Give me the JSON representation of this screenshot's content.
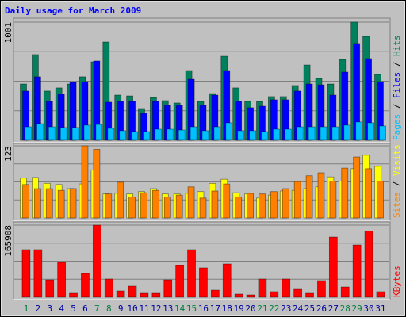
{
  "chart_data": {
    "type": "bar",
    "title": "Daily usage for March 2009",
    "categories": [
      "1",
      "2",
      "3",
      "4",
      "5",
      "6",
      "7",
      "8",
      "9",
      "10",
      "11",
      "12",
      "13",
      "14",
      "15",
      "16",
      "17",
      "18",
      "19",
      "20",
      "21",
      "22",
      "23",
      "24",
      "25",
      "26",
      "27",
      "28",
      "29",
      "30",
      "31"
    ],
    "category_colors": [
      "#008040",
      "#0000a0",
      "#0000a0",
      "#0000a0",
      "#0000a0",
      "#0000a0",
      "#008040",
      "#008040",
      "#0000a0",
      "#0000a0",
      "#0000a0",
      "#0000a0",
      "#0000a0",
      "#008040",
      "#008040",
      "#0000a0",
      "#0000a0",
      "#0000a0",
      "#0000a0",
      "#0000a0",
      "#008040",
      "#008040",
      "#0000a0",
      "#0000a0",
      "#0000a0",
      "#0000a0",
      "#0000a0",
      "#008040",
      "#008040",
      "#0000a0",
      "#0000a0"
    ],
    "legend_separator": " / ",
    "panels": [
      {
        "ylim": [
          0,
          1001
        ],
        "yticks": [
          1001
        ],
        "series": [
          {
            "name": "Hits",
            "color": "#00805c",
            "values": [
              477,
              726,
              417,
              444,
              477,
              538,
              665,
              833,
              383,
              376,
              269,
              363,
              336,
              316,
              591,
              329,
              396,
              712,
              444,
              329,
              329,
              370,
              370,
              464,
              638,
              524,
              477,
              685,
              1001,
              880,
              558
            ]
          },
          {
            "name": "Files",
            "color": "#0000ff",
            "values": [
              417,
              538,
              329,
              390,
              491,
              497,
              672,
              323,
              329,
              329,
              228,
              329,
              296,
              296,
              517,
              296,
              383,
              591,
              329,
              276,
              289,
              343,
              343,
              417,
              477,
              470,
              383,
              578,
              820,
              692,
              497
            ]
          },
          {
            "name": "Pages",
            "color": "#00c0ff",
            "values": [
              114,
              141,
              114,
              108,
              108,
              128,
              134,
              101,
              81,
              74,
              74,
              94,
              94,
              87,
              114,
              81,
              114,
              148,
              81,
              81,
              74,
              94,
              94,
              114,
              114,
              114,
              114,
              128,
              155,
              148,
              121
            ]
          }
        ]
      },
      {
        "ylim": [
          0,
          123
        ],
        "yticks": [
          123
        ],
        "series": [
          {
            "name": "Visits",
            "color": "#ffff00",
            "values": [
              68,
              69,
              59,
              57,
              50,
              58,
              82,
              41,
              42,
              41,
              45,
              50,
              41,
              41,
              42,
              45,
              59,
              66,
              43,
              41,
              34,
              39,
              46,
              47,
              50,
              53,
              70,
              63,
              84,
              107,
              88
            ]
          },
          {
            "name": "Sites",
            "color": "#ff8000",
            "values": [
              57,
              50,
              50,
              47,
              50,
              123,
              117,
              41,
              61,
              36,
              43,
              47,
              36,
              39,
              53,
              34,
              46,
              58,
              36,
              42,
              41,
              45,
              50,
              62,
              72,
              77,
              63,
              85,
              104,
              84,
              63
            ]
          }
        ]
      },
      {
        "ylim": [
          0,
          165908
        ],
        "yticks": [
          165908
        ],
        "series": [
          {
            "name": "KBytes",
            "color": "#ff0000",
            "values": [
              109400,
              109400,
              40100,
              80200,
              9100,
              54700,
              165908,
              41900,
              14600,
              25500,
              9100,
              9100,
              40100,
              72900,
              109400,
              67500,
              16400,
              76600,
              7300,
              5500,
              41900,
              12800,
              41900,
              18200,
              9100,
              38300,
              138500,
              23700,
              120300,
              152000,
              12800
            ]
          }
        ]
      }
    ]
  }
}
